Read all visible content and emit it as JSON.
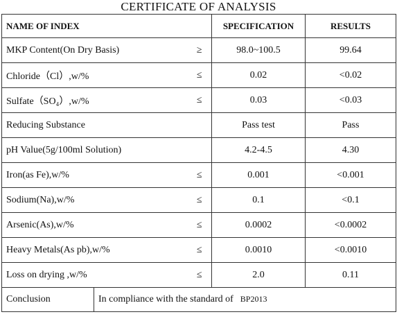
{
  "header": {
    "title": "CERTIFICATE OF ANALYSIS"
  },
  "table": {
    "columns": [
      "NAME OF INDEX",
      "SPECIFICATION",
      "RESULTS"
    ],
    "rows": [
      {
        "name": "MKP Content(On Dry Basis)",
        "symbol": "≥",
        "spec": "98.0~100.5",
        "result": "99.64"
      },
      {
        "name": "Chloride（Cl）,w/%",
        "symbol": "≤",
        "spec": "0.02",
        "result": "<0.02"
      },
      {
        "name": "Sulfate（SO₄）,w/%",
        "symbol": "≤",
        "spec": "0.03",
        "result": "<0.03"
      },
      {
        "name": "Reducing Substance",
        "spec": "Pass test",
        "result": "Pass"
      },
      {
        "name": "pH Value(5g/100ml Solution)",
        "spec": "4.2-4.5",
        "result": "4.30"
      },
      {
        "name": "Iron(as Fe),w/%",
        "symbol": "≤",
        "spec": "0.001",
        "result": "<0.001"
      },
      {
        "name": "Sodium(Na),w/%",
        "symbol": "≤",
        "spec": "0.1",
        "result": "<0.1"
      },
      {
        "name": "Arsenic(As),w/%",
        "symbol": "≤",
        "spec": "0.0002",
        "result": "<0.0002"
      },
      {
        "name": "Heavy Metals(As pb),w/%",
        "symbol": "≤",
        "spec": "0.0010",
        "result": "<0.0010"
      },
      {
        "name": "Loss on drying ,w/%",
        "symbol": "≤",
        "spec": "2.0",
        "result": "0.11"
      }
    ],
    "conclusion": {
      "label": "Conclusion",
      "text": "In compliance with the standard of",
      "standard": "BP2013"
    }
  }
}
